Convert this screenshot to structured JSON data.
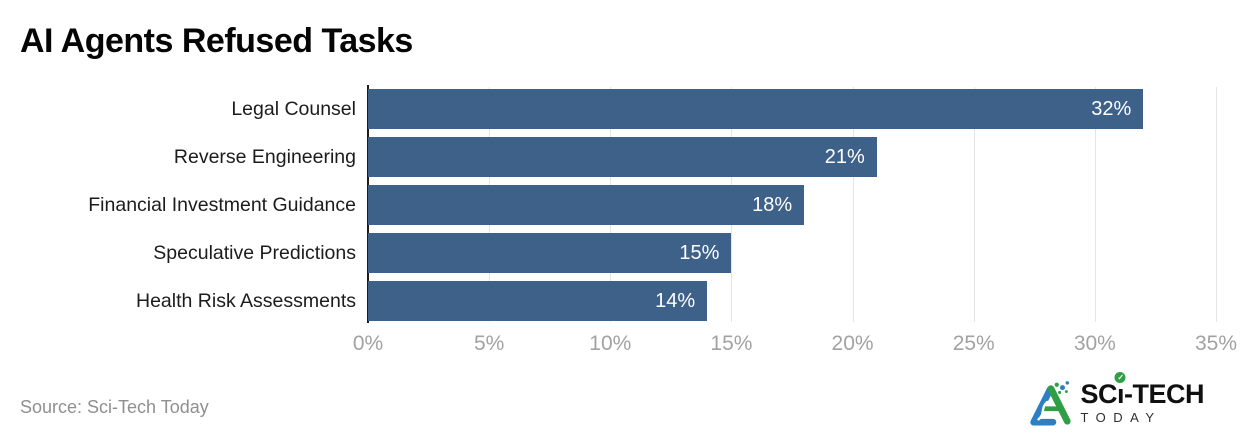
{
  "title": "AI Agents Refused Tasks",
  "chart_data": {
    "type": "bar",
    "orientation": "horizontal",
    "title": "AI Agents Refused Tasks",
    "categories": [
      "Legal Counsel",
      "Reverse Engineering",
      "Financial Investment Guidance",
      "Speculative Predictions",
      "Health Risk Assessments"
    ],
    "values": [
      32,
      21,
      18,
      15,
      14
    ],
    "value_labels": [
      "32%",
      "21%",
      "18%",
      "15%",
      "14%"
    ],
    "xlim": [
      0,
      35
    ],
    "x_tick_values": [
      0,
      5,
      10,
      15,
      20,
      25,
      30,
      35
    ],
    "x_tick_labels": [
      "0%",
      "5%",
      "10%",
      "15%",
      "20%",
      "25%",
      "30%",
      "35%"
    ],
    "grid": "vertical-gridlines-on",
    "legend": "none",
    "bar_color": "#3d6189",
    "value_label_color": "#ffffff",
    "gridline_color": "#e4e4e4",
    "axis_line_color": "#1b1b1b",
    "tick_label_color": "#a2a2a2",
    "category_label_color": "#1c1c1c"
  },
  "footer": {
    "source": "Source: Sci-Tech Today"
  },
  "logo": {
    "part1": "SC",
    "i_char": "ı",
    "check": "✓",
    "part2": "-TECH",
    "sub": "TODAY",
    "blue": "#2b7fc3",
    "green": "#2f9e44"
  }
}
